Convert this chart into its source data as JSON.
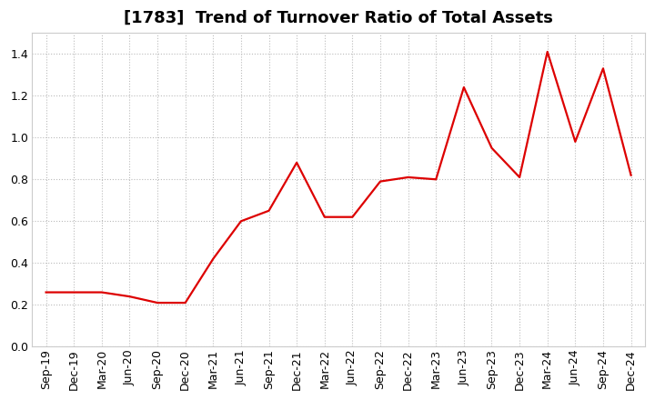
{
  "title": "[1783]  Trend of Turnover Ratio of Total Assets",
  "labels": [
    "Sep-19",
    "Dec-19",
    "Mar-20",
    "Jun-20",
    "Sep-20",
    "Dec-20",
    "Mar-21",
    "Jun-21",
    "Sep-21",
    "Dec-21",
    "Mar-22",
    "Jun-22",
    "Sep-22",
    "Dec-22",
    "Mar-23",
    "Jun-23",
    "Sep-23",
    "Dec-23",
    "Mar-24",
    "Jun-24",
    "Sep-24",
    "Dec-24"
  ],
  "values": [
    0.26,
    0.26,
    0.26,
    0.24,
    0.21,
    0.21,
    0.42,
    0.6,
    0.65,
    0.88,
    0.62,
    0.62,
    0.79,
    0.81,
    0.8,
    1.24,
    0.95,
    0.81,
    1.41,
    0.98,
    1.33,
    0.82
  ],
  "line_color": "#dd0000",
  "background_color": "#ffffff",
  "plot_bg_color": "#ffffff",
  "grid_color": "#bbbbbb",
  "ylim": [
    0.0,
    1.5
  ],
  "yticks": [
    0.0,
    0.2,
    0.4,
    0.6,
    0.8,
    1.0,
    1.2,
    1.4
  ],
  "title_fontsize": 13,
  "tick_fontsize": 9
}
